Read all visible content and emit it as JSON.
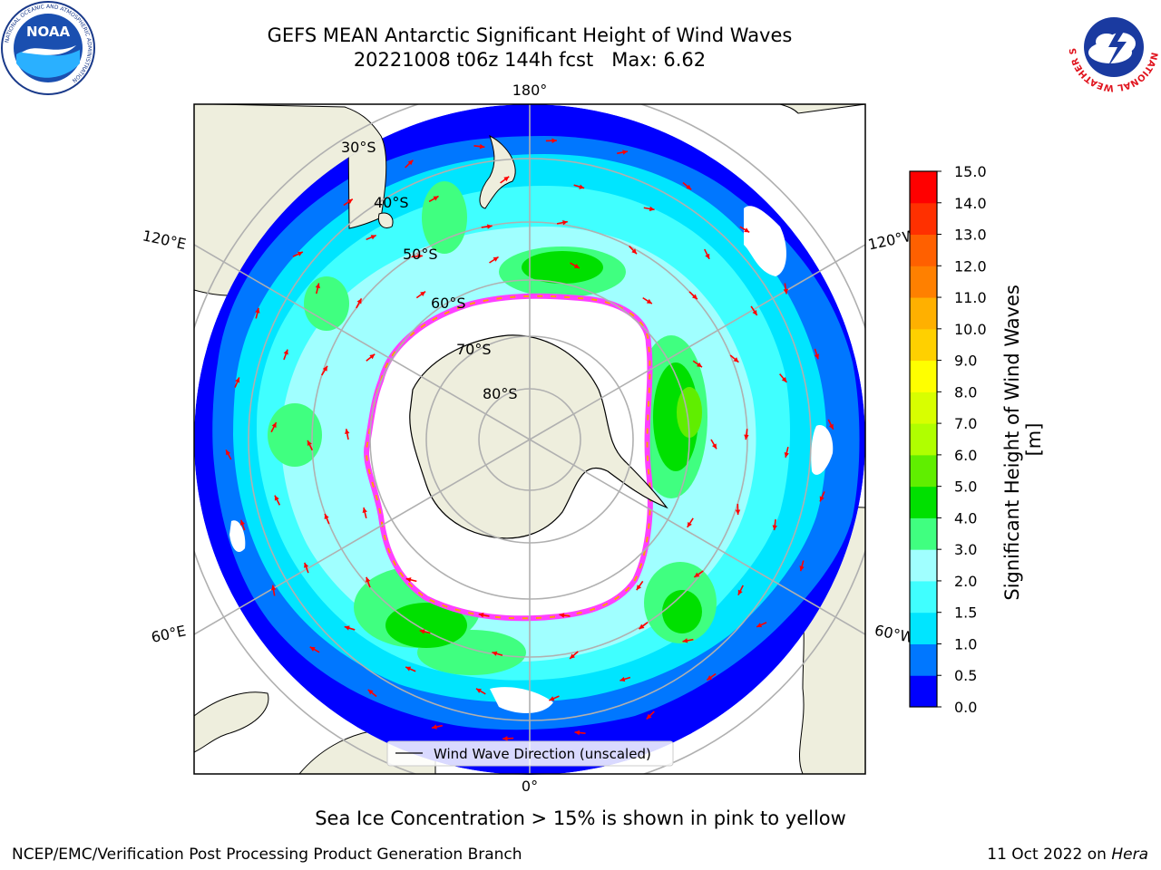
{
  "header": {
    "title_line1": "GEFS MEAN Antarctic Significant Height of Wind Waves",
    "title_line2": "20221008 t06z 144h fcst   Max: 6.62",
    "left_logo": {
      "text": "NOAA",
      "ring_text": "NATIONAL OCEANIC AND ATMOSPHERIC ADMINISTRATION",
      "bottom_text": "U.S. DEPARTMENT OF COMMERCE"
    },
    "right_logo": {
      "ring_text": "NATIONAL WEATHER SERVICE"
    }
  },
  "map": {
    "projection": "south polar stereographic",
    "longitude_labels": {
      "top": "180°",
      "bottom": "0°",
      "upper_left": "120°E",
      "upper_right": "120°W",
      "lower_left": "60°E",
      "lower_right": "60°W"
    },
    "latitude_labels": [
      "30°S",
      "40°S",
      "50°S",
      "60°S",
      "70°S",
      "80°S"
    ],
    "legend": {
      "label": "Wind Wave Direction (unscaled)"
    },
    "arrow_color": "#ff0000",
    "sea_ice_colors": [
      "#ff40ff",
      "#ffa000",
      "#ffe000"
    ]
  },
  "colorbar": {
    "label": "Significant Height of Wind Waves [m]",
    "ticks": [
      "0.0",
      "0.5",
      "1.0",
      "1.5",
      "2.0",
      "3.0",
      "4.0",
      "5.0",
      "6.0",
      "7.0",
      "8.0",
      "9.0",
      "10.0",
      "11.0",
      "12.0",
      "13.0",
      "14.0",
      "15.0"
    ],
    "colors": [
      "#0000ff",
      "#0077ff",
      "#00e5ff",
      "#40ffff",
      "#a0ffff",
      "#40ff80",
      "#00e000",
      "#60ee00",
      "#b0ff00",
      "#d8ff00",
      "#ffff00",
      "#ffd000",
      "#ffb000",
      "#ff8000",
      "#ff6000",
      "#ff3000",
      "#ff0000"
    ]
  },
  "caption": "Sea Ice Concentration > 15% is shown in pink to yellow",
  "footer": {
    "left": "NCEP/EMC/Verification Post Processing Product Generation Branch",
    "right_date": "11 Oct 2022 on ",
    "right_host": "Hera"
  }
}
